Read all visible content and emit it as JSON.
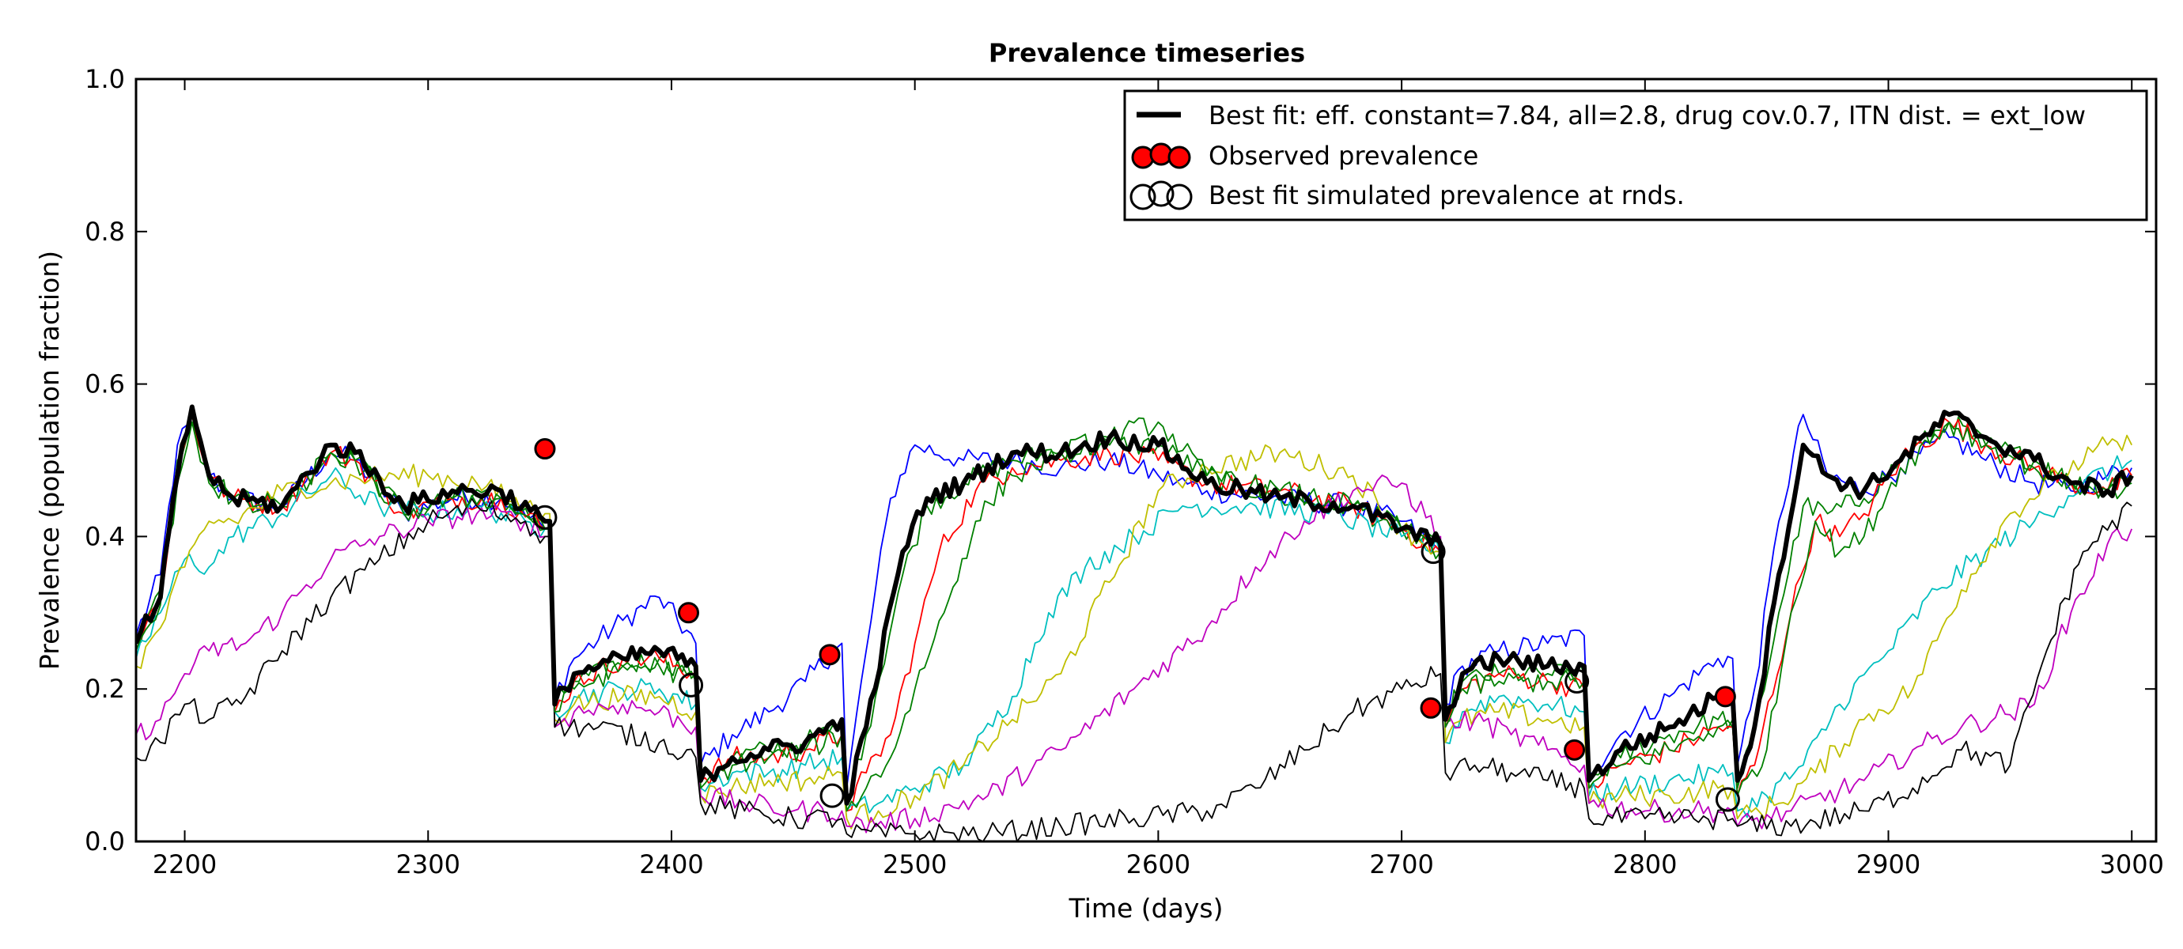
{
  "chart_data": {
    "type": "line",
    "title": "Prevalence timeseries",
    "xlabel": "Time (days)",
    "ylabel": "Prevalence (population fraction)",
    "xlim": [
      2180,
      3010
    ],
    "ylim": [
      0.0,
      1.0
    ],
    "xticks": [
      2200,
      2300,
      2400,
      2500,
      2600,
      2700,
      2800,
      2900,
      3000
    ],
    "xtick_labels": [
      "2200",
      "2300",
      "2400",
      "2500",
      "2600",
      "2700",
      "2800",
      "2900",
      "3000"
    ],
    "yticks": [
      0.0,
      0.2,
      0.4,
      0.6,
      0.8,
      1.0
    ],
    "ytick_labels": [
      "0.0",
      "0.2",
      "0.4",
      "0.6",
      "0.8",
      "1.0"
    ],
    "grid": false,
    "legend_position": "top-right",
    "legend": [
      {
        "label": "Best fit: eff. constant=7.84, all=2.8, drug cov.0.7, ITN dist. = ext_low",
        "marker": "line"
      },
      {
        "label": "Observed prevalence",
        "marker": "filled-circles"
      },
      {
        "label": "Best fit simulated prevalence at rnds.",
        "marker": "open-circles"
      }
    ],
    "colors": {
      "best_fit": "#000000",
      "observed": "#ff0000",
      "ensemble": [
        "#0000ff",
        "#008000",
        "#ff0000",
        "#00bfbf",
        "#bfbf00",
        "#bf00bf",
        "#000000",
        "#008000"
      ]
    },
    "best_fit": {
      "x": [
        2180,
        2190,
        2197,
        2203,
        2210,
        2220,
        2240,
        2260,
        2270,
        2290,
        2310,
        2330,
        2348,
        2350,
        2352,
        2360,
        2380,
        2395,
        2410,
        2412,
        2425,
        2440,
        2455,
        2470,
        2472,
        2480,
        2495,
        2505,
        2520,
        2540,
        2560,
        2580,
        2600,
        2620,
        2650,
        2680,
        2700,
        2716,
        2718,
        2725,
        2740,
        2760,
        2775,
        2777,
        2790,
        2810,
        2830,
        2836,
        2838,
        2845,
        2855,
        2865,
        2875,
        2890,
        2905,
        2925,
        2940,
        2960,
        2975,
        2990,
        3000
      ],
      "y": [
        0.26,
        0.32,
        0.48,
        0.57,
        0.48,
        0.45,
        0.44,
        0.52,
        0.51,
        0.44,
        0.46,
        0.46,
        0.42,
        0.42,
        0.18,
        0.22,
        0.24,
        0.25,
        0.23,
        0.08,
        0.11,
        0.12,
        0.13,
        0.16,
        0.05,
        0.15,
        0.38,
        0.45,
        0.47,
        0.51,
        0.51,
        0.53,
        0.52,
        0.47,
        0.45,
        0.44,
        0.41,
        0.39,
        0.16,
        0.22,
        0.24,
        0.23,
        0.23,
        0.08,
        0.12,
        0.15,
        0.19,
        0.19,
        0.08,
        0.15,
        0.35,
        0.52,
        0.48,
        0.46,
        0.5,
        0.56,
        0.53,
        0.5,
        0.47,
        0.46,
        0.48
      ]
    },
    "ensemble": [
      {
        "x": [
          2180,
          2190,
          2197,
          2203,
          2210,
          2220,
          2240,
          2260,
          2270,
          2290,
          2310,
          2330,
          2348,
          2350,
          2352,
          2360,
          2380,
          2395,
          2410,
          2412,
          2425,
          2440,
          2455,
          2470,
          2472,
          2480,
          2490,
          2500,
          2520,
          2540,
          2560,
          2580,
          2600,
          2620,
          2650,
          2680,
          2700,
          2716,
          2718,
          2725,
          2740,
          2760,
          2775,
          2777,
          2790,
          2810,
          2830,
          2836,
          2838,
          2845,
          2855,
          2865,
          2875,
          2890,
          2905,
          2925,
          2940,
          2960,
          2975,
          2990,
          3000
        ],
        "y": [
          0.27,
          0.35,
          0.52,
          0.55,
          0.48,
          0.45,
          0.44,
          0.51,
          0.5,
          0.43,
          0.45,
          0.45,
          0.41,
          0.41,
          0.19,
          0.24,
          0.29,
          0.32,
          0.26,
          0.1,
          0.14,
          0.17,
          0.21,
          0.26,
          0.07,
          0.25,
          0.45,
          0.52,
          0.5,
          0.5,
          0.49,
          0.5,
          0.48,
          0.46,
          0.45,
          0.44,
          0.42,
          0.38,
          0.18,
          0.23,
          0.25,
          0.26,
          0.27,
          0.09,
          0.14,
          0.19,
          0.24,
          0.24,
          0.1,
          0.2,
          0.42,
          0.56,
          0.48,
          0.46,
          0.49,
          0.53,
          0.5,
          0.47,
          0.46,
          0.48,
          0.49
        ]
      },
      {
        "x": [
          2180,
          2190,
          2197,
          2203,
          2210,
          2220,
          2240,
          2260,
          2270,
          2290,
          2310,
          2330,
          2348,
          2350,
          2352,
          2360,
          2380,
          2395,
          2410,
          2412,
          2425,
          2440,
          2455,
          2470,
          2472,
          2480,
          2495,
          2505,
          2520,
          2540,
          2560,
          2580,
          2600,
          2620,
          2650,
          2680,
          2700,
          2716,
          2718,
          2725,
          2740,
          2760,
          2775,
          2777,
          2790,
          2810,
          2830,
          2836,
          2838,
          2845,
          2855,
          2865,
          2875,
          2890,
          2905,
          2925,
          2940,
          2960,
          2975,
          2990,
          3000
        ],
        "y": [
          0.26,
          0.33,
          0.5,
          0.56,
          0.48,
          0.45,
          0.44,
          0.51,
          0.5,
          0.43,
          0.45,
          0.45,
          0.41,
          0.41,
          0.18,
          0.21,
          0.23,
          0.24,
          0.22,
          0.08,
          0.11,
          0.12,
          0.13,
          0.15,
          0.05,
          0.14,
          0.35,
          0.44,
          0.47,
          0.5,
          0.51,
          0.52,
          0.52,
          0.48,
          0.45,
          0.44,
          0.41,
          0.38,
          0.16,
          0.21,
          0.22,
          0.22,
          0.22,
          0.08,
          0.11,
          0.14,
          0.16,
          0.16,
          0.07,
          0.14,
          0.3,
          0.44,
          0.43,
          0.45,
          0.5,
          0.55,
          0.52,
          0.5,
          0.47,
          0.46,
          0.47
        ]
      },
      {
        "x": [
          2180,
          2190,
          2197,
          2203,
          2210,
          2220,
          2240,
          2260,
          2270,
          2290,
          2310,
          2330,
          2348,
          2350,
          2352,
          2360,
          2380,
          2395,
          2410,
          2412,
          2425,
          2440,
          2455,
          2470,
          2472,
          2480,
          2490,
          2500,
          2510,
          2525,
          2540,
          2560,
          2580,
          2600,
          2620,
          2650,
          2680,
          2700,
          2716,
          2718,
          2725,
          2740,
          2760,
          2775,
          2777,
          2790,
          2810,
          2830,
          2836,
          2838,
          2845,
          2860,
          2870,
          2880,
          2890,
          2905,
          2925,
          2940,
          2960,
          2975,
          2990,
          3000
        ],
        "y": [
          0.26,
          0.32,
          0.48,
          0.56,
          0.48,
          0.45,
          0.44,
          0.51,
          0.5,
          0.43,
          0.45,
          0.45,
          0.41,
          0.41,
          0.17,
          0.21,
          0.24,
          0.24,
          0.22,
          0.08,
          0.11,
          0.11,
          0.12,
          0.14,
          0.04,
          0.09,
          0.14,
          0.26,
          0.38,
          0.46,
          0.49,
          0.5,
          0.51,
          0.5,
          0.47,
          0.46,
          0.44,
          0.41,
          0.38,
          0.15,
          0.2,
          0.22,
          0.21,
          0.2,
          0.07,
          0.1,
          0.12,
          0.15,
          0.15,
          0.06,
          0.1,
          0.3,
          0.42,
          0.4,
          0.43,
          0.5,
          0.55,
          0.52,
          0.49,
          0.47,
          0.46,
          0.48
        ]
      },
      {
        "x": [
          2180,
          2190,
          2200,
          2210,
          2220,
          2240,
          2260,
          2280,
          2300,
          2320,
          2340,
          2348,
          2350,
          2352,
          2360,
          2380,
          2395,
          2410,
          2412,
          2425,
          2440,
          2455,
          2470,
          2472,
          2485,
          2500,
          2520,
          2540,
          2555,
          2570,
          2590,
          2610,
          2640,
          2670,
          2700,
          2716,
          2718,
          2725,
          2740,
          2760,
          2775,
          2777,
          2790,
          2810,
          2830,
          2836,
          2838,
          2850,
          2865,
          2880,
          2900,
          2920,
          2940,
          2960,
          2980,
          3000
        ],
        "y": [
          0.24,
          0.3,
          0.37,
          0.36,
          0.4,
          0.43,
          0.48,
          0.44,
          0.43,
          0.44,
          0.42,
          0.41,
          0.41,
          0.17,
          0.19,
          0.2,
          0.2,
          0.18,
          0.07,
          0.09,
          0.09,
          0.1,
          0.11,
          0.04,
          0.05,
          0.07,
          0.1,
          0.19,
          0.3,
          0.36,
          0.4,
          0.44,
          0.44,
          0.43,
          0.4,
          0.38,
          0.13,
          0.17,
          0.19,
          0.18,
          0.17,
          0.06,
          0.07,
          0.08,
          0.09,
          0.09,
          0.04,
          0.06,
          0.1,
          0.18,
          0.25,
          0.33,
          0.38,
          0.42,
          0.47,
          0.5
        ]
      },
      {
        "x": [
          2180,
          2190,
          2200,
          2210,
          2220,
          2240,
          2260,
          2280,
          2300,
          2320,
          2340,
          2348,
          2350,
          2352,
          2360,
          2380,
          2395,
          2410,
          2412,
          2425,
          2440,
          2455,
          2470,
          2472,
          2485,
          2500,
          2520,
          2540,
          2560,
          2580,
          2600,
          2620,
          2650,
          2680,
          2700,
          2716,
          2718,
          2725,
          2740,
          2760,
          2775,
          2777,
          2790,
          2810,
          2830,
          2836,
          2838,
          2855,
          2870,
          2890,
          2910,
          2930,
          2950,
          2970,
          2990,
          3000
        ],
        "y": [
          0.23,
          0.28,
          0.36,
          0.42,
          0.42,
          0.46,
          0.47,
          0.48,
          0.48,
          0.47,
          0.44,
          0.43,
          0.43,
          0.16,
          0.18,
          0.19,
          0.19,
          0.17,
          0.06,
          0.07,
          0.08,
          0.08,
          0.09,
          0.03,
          0.04,
          0.06,
          0.1,
          0.16,
          0.22,
          0.34,
          0.46,
          0.49,
          0.51,
          0.48,
          0.41,
          0.38,
          0.13,
          0.16,
          0.17,
          0.16,
          0.15,
          0.05,
          0.06,
          0.06,
          0.07,
          0.07,
          0.03,
          0.05,
          0.09,
          0.16,
          0.2,
          0.33,
          0.43,
          0.48,
          0.52,
          0.52
        ]
      },
      {
        "x": [
          2180,
          2190,
          2200,
          2210,
          2225,
          2240,
          2260,
          2280,
          2300,
          2320,
          2340,
          2348,
          2350,
          2352,
          2360,
          2380,
          2395,
          2410,
          2412,
          2430,
          2450,
          2470,
          2472,
          2500,
          2530,
          2560,
          2590,
          2620,
          2640,
          2660,
          2680,
          2700,
          2716,
          2718,
          2730,
          2745,
          2760,
          2775,
          2777,
          2800,
          2820,
          2836,
          2838,
          2860,
          2890,
          2910,
          2930,
          2960,
          2975,
          2990,
          3000
        ],
        "y": [
          0.14,
          0.16,
          0.22,
          0.25,
          0.26,
          0.3,
          0.37,
          0.4,
          0.42,
          0.43,
          0.42,
          0.4,
          0.4,
          0.15,
          0.17,
          0.18,
          0.17,
          0.15,
          0.06,
          0.05,
          0.04,
          0.04,
          0.02,
          0.03,
          0.06,
          0.12,
          0.2,
          0.28,
          0.36,
          0.42,
          0.46,
          0.47,
          0.4,
          0.15,
          0.16,
          0.14,
          0.12,
          0.1,
          0.05,
          0.04,
          0.04,
          0.04,
          0.02,
          0.04,
          0.08,
          0.12,
          0.15,
          0.18,
          0.3,
          0.39,
          0.41
        ]
      },
      {
        "x": [
          2180,
          2190,
          2200,
          2210,
          2225,
          2240,
          2260,
          2280,
          2300,
          2320,
          2340,
          2348,
          2350,
          2352,
          2370,
          2395,
          2410,
          2412,
          2430,
          2450,
          2470,
          2472,
          2500,
          2530,
          2560,
          2590,
          2620,
          2640,
          2660,
          2680,
          2700,
          2716,
          2718,
          2730,
          2745,
          2760,
          2775,
          2777,
          2800,
          2820,
          2836,
          2838,
          2860,
          2890,
          2910,
          2930,
          2950,
          2965,
          2980,
          3000
        ],
        "y": [
          0.11,
          0.13,
          0.18,
          0.16,
          0.19,
          0.25,
          0.32,
          0.37,
          0.42,
          0.44,
          0.42,
          0.4,
          0.4,
          0.15,
          0.15,
          0.13,
          0.11,
          0.05,
          0.04,
          0.03,
          0.03,
          0.01,
          0.01,
          0.01,
          0.02,
          0.03,
          0.04,
          0.07,
          0.12,
          0.17,
          0.2,
          0.22,
          0.09,
          0.1,
          0.09,
          0.08,
          0.07,
          0.03,
          0.03,
          0.03,
          0.03,
          0.02,
          0.02,
          0.04,
          0.07,
          0.12,
          0.1,
          0.25,
          0.38,
          0.44
        ]
      },
      {
        "x": [
          2180,
          2190,
          2197,
          2203,
          2210,
          2220,
          2240,
          2260,
          2270,
          2290,
          2310,
          2330,
          2348,
          2350,
          2352,
          2360,
          2380,
          2395,
          2410,
          2412,
          2425,
          2440,
          2455,
          2470,
          2472,
          2480,
          2490,
          2500,
          2512,
          2525,
          2540,
          2560,
          2580,
          2600,
          2620,
          2650,
          2680,
          2700,
          2716,
          2718,
          2725,
          2740,
          2760,
          2775,
          2777,
          2790,
          2810,
          2830,
          2836,
          2838,
          2850,
          2860,
          2870,
          2880,
          2890,
          2905,
          2925,
          2940,
          2960,
          2975,
          2990,
          3000
        ],
        "y": [
          0.25,
          0.31,
          0.47,
          0.55,
          0.47,
          0.45,
          0.44,
          0.51,
          0.5,
          0.43,
          0.45,
          0.45,
          0.41,
          0.41,
          0.17,
          0.2,
          0.23,
          0.23,
          0.21,
          0.07,
          0.1,
          0.11,
          0.12,
          0.14,
          0.04,
          0.07,
          0.11,
          0.2,
          0.3,
          0.42,
          0.48,
          0.51,
          0.53,
          0.55,
          0.48,
          0.46,
          0.44,
          0.41,
          0.38,
          0.15,
          0.2,
          0.21,
          0.21,
          0.21,
          0.07,
          0.1,
          0.12,
          0.15,
          0.15,
          0.06,
          0.12,
          0.3,
          0.42,
          0.38,
          0.4,
          0.49,
          0.55,
          0.52,
          0.49,
          0.47,
          0.46,
          0.48
        ]
      }
    ],
    "observed": {
      "x": [
        2348,
        2407,
        2465,
        2712,
        2771,
        2833
      ],
      "y": [
        0.515,
        0.3,
        0.245,
        0.175,
        0.12,
        0.19
      ]
    },
    "simulated_at_rounds": {
      "x": [
        2348,
        2408,
        2466,
        2713,
        2772,
        2834
      ],
      "y": [
        0.425,
        0.205,
        0.06,
        0.38,
        0.21,
        0.055
      ]
    }
  }
}
